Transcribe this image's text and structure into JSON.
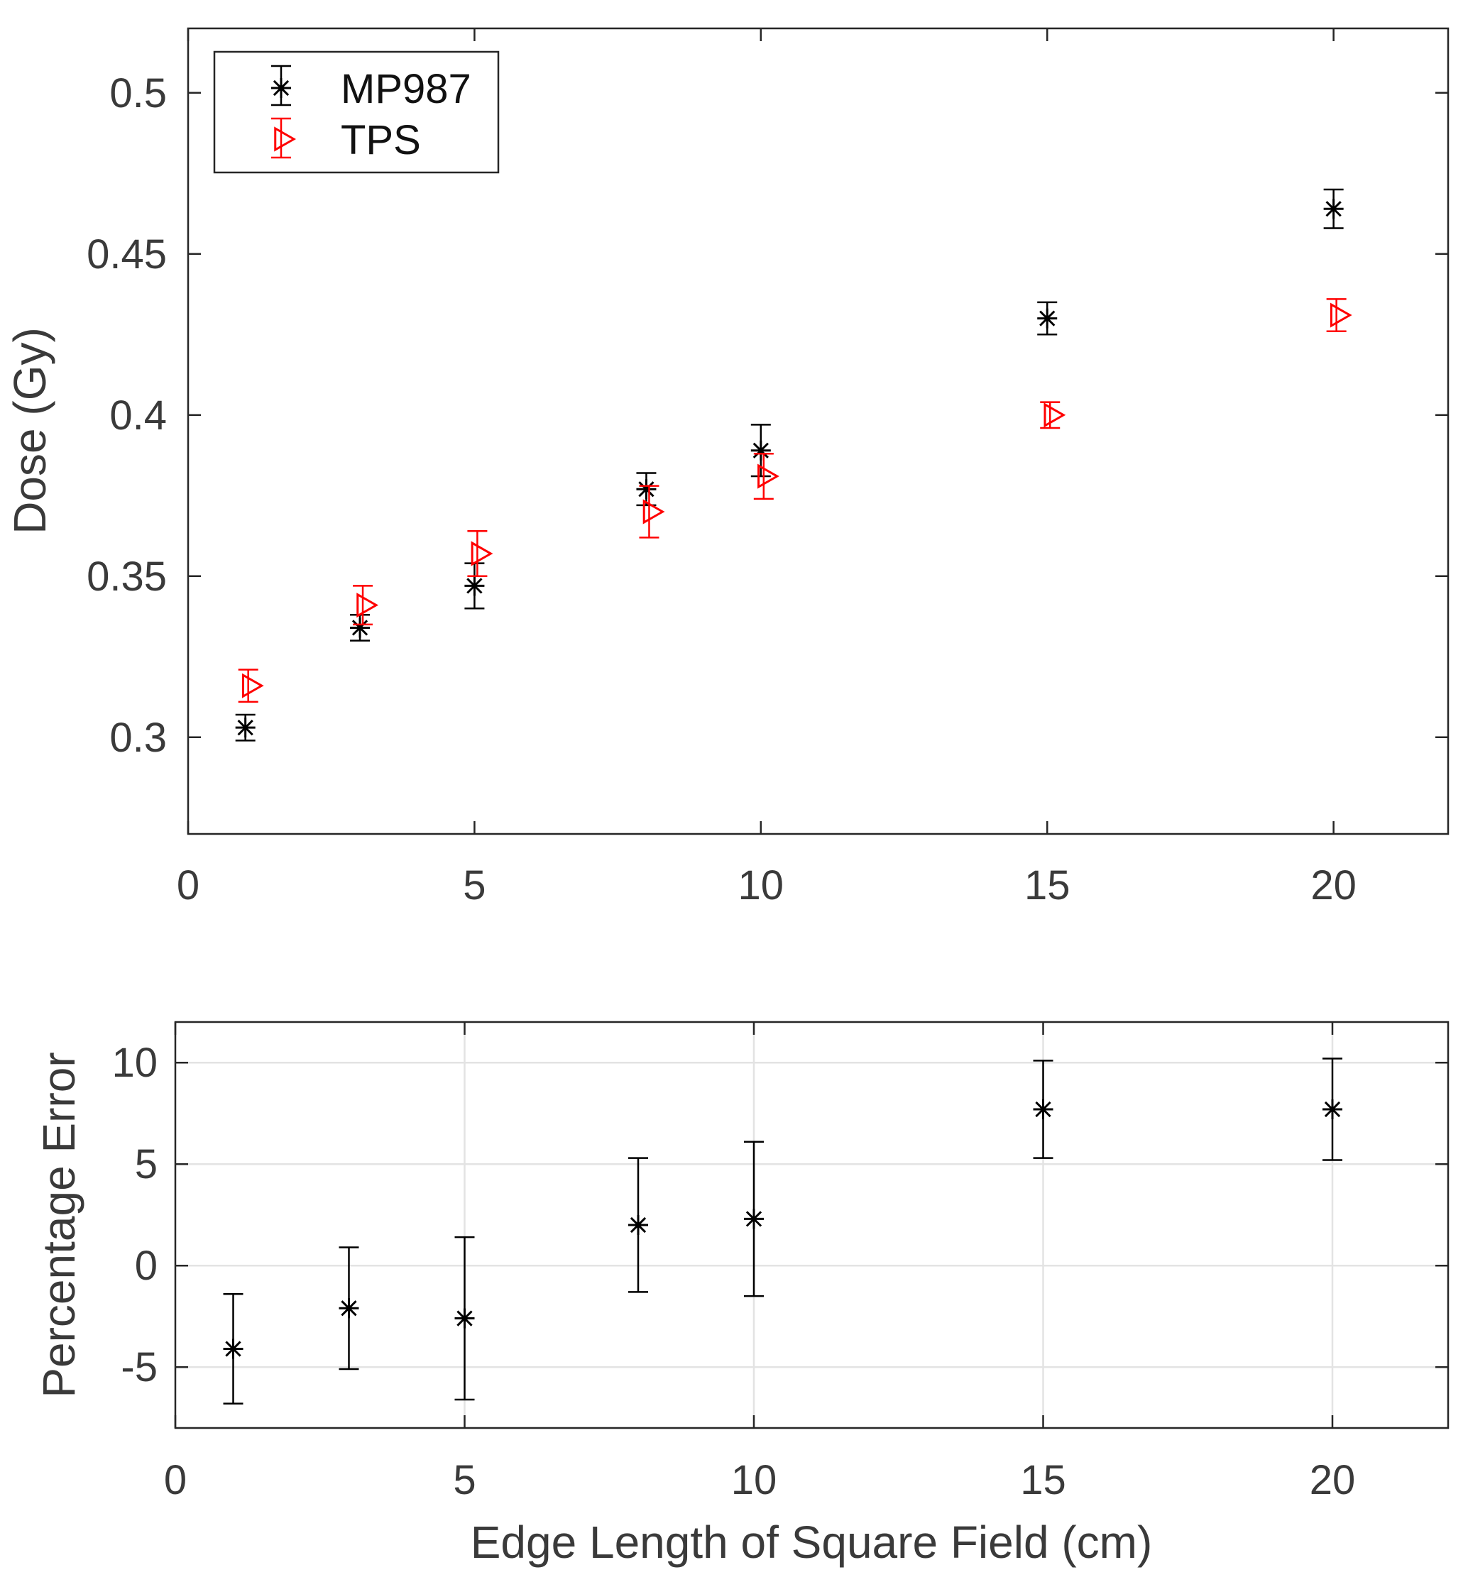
{
  "chart_data": [
    {
      "type": "scatter",
      "panel": "top",
      "title": "",
      "xlabel": "",
      "ylabel": "Dose (Gy)",
      "xlim": [
        0,
        22
      ],
      "ylim": [
        0.27,
        0.52
      ],
      "xticks": [
        0,
        5,
        10,
        15,
        20
      ],
      "xtick_labels": [
        "0",
        "5",
        "10",
        "15",
        "20"
      ],
      "yticks": [
        0.3,
        0.35,
        0.4,
        0.45,
        0.5
      ],
      "ytick_labels": [
        "0.3",
        "0.35",
        "0.4",
        "0.45",
        "0.5"
      ],
      "grid": false,
      "legend_position": "top-left",
      "series": [
        {
          "name": "MP987",
          "marker": "asterisk",
          "color": "#000000",
          "x": [
            1,
            3,
            5,
            8,
            10,
            15,
            20
          ],
          "values": [
            0.303,
            0.334,
            0.347,
            0.377,
            0.389,
            0.43,
            0.464
          ],
          "errors": [
            0.004,
            0.004,
            0.007,
            0.005,
            0.008,
            0.005,
            0.006
          ]
        },
        {
          "name": "TPS",
          "marker": "triangle-right",
          "color": "#ff0000",
          "x": [
            1,
            3,
            5,
            8,
            10,
            15,
            20
          ],
          "values": [
            0.316,
            0.341,
            0.357,
            0.37,
            0.381,
            0.4,
            0.431
          ],
          "errors": [
            0.005,
            0.006,
            0.007,
            0.008,
            0.007,
            0.004,
            0.005
          ]
        }
      ]
    },
    {
      "type": "scatter",
      "panel": "bottom",
      "title": "",
      "xlabel": "Edge Length of Square Field (cm)",
      "ylabel": "Percentage Error",
      "xlim": [
        0,
        22
      ],
      "ylim": [
        -8,
        12
      ],
      "xticks": [
        0,
        5,
        10,
        15,
        20
      ],
      "xtick_labels": [
        "0",
        "5",
        "10",
        "15",
        "20"
      ],
      "yticks": [
        -5,
        0,
        5,
        10
      ],
      "ytick_labels": [
        "-5",
        "0",
        "5",
        "10"
      ],
      "grid": true,
      "series": [
        {
          "name": "Percentage Error",
          "marker": "asterisk",
          "color": "#000000",
          "x": [
            1,
            3,
            5,
            8,
            10,
            15,
            20
          ],
          "values": [
            -4.1,
            -2.1,
            -2.6,
            2.0,
            2.3,
            7.7,
            7.7
          ],
          "errors": [
            2.7,
            3.0,
            4.0,
            3.3,
            3.8,
            2.4,
            2.5
          ]
        }
      ]
    }
  ]
}
